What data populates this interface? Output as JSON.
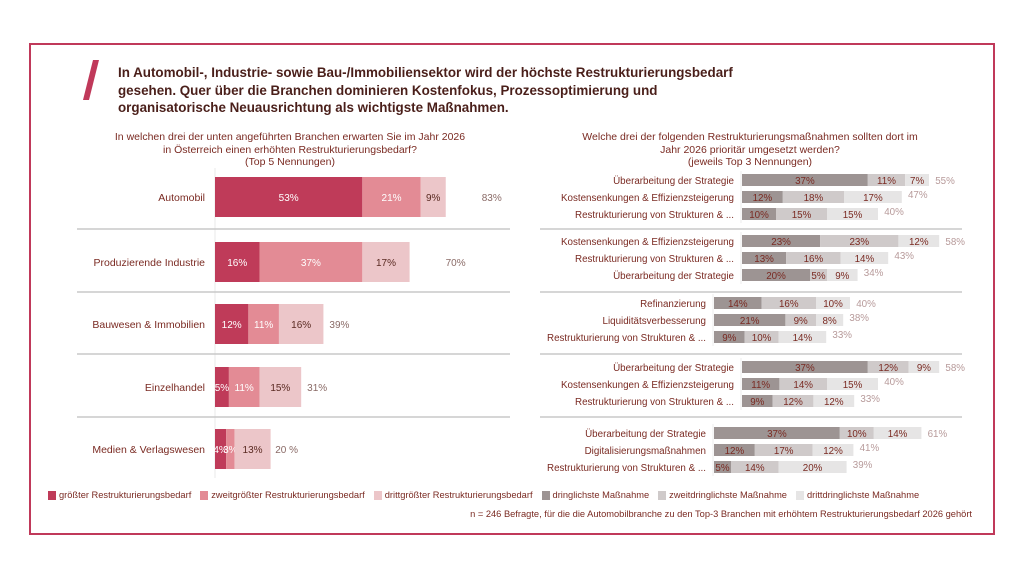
{
  "headline": "In Automobil-, Industrie- sowie Bau-/Immobiliensektor wird der höchste Restrukturierungsbedarf gesehen. Quer über die Branchen dominieren Kostenfokus, Prozessoptimierung und organisatorische Neuausrichtung als wichtigste Maßnahmen.",
  "colors": {
    "frame": "#c0395a",
    "red1": "#bf3b59",
    "red2": "#e38b95",
    "red3": "#ecc6c9",
    "grey1": "#9d9493",
    "grey2": "#cfcaca",
    "grey3": "#e6e5e5",
    "text": "#7a2a22",
    "total_grey": "#b79a9a"
  },
  "left_question": [
    "In welchen drei der unten angeführten Branchen erwarten Sie im Jahr 2026",
    "in Österreich einen erhöhten Restrukturierungsbedarf?",
    "(Top 5 Nennungen)"
  ],
  "right_question": [
    "Welche drei der folgenden Restrukturierungsmaßnahmen sollten dort im",
    "Jahr 2026 prioritär umgesetzt werden?",
    "(jeweils Top 3 Nennungen)"
  ],
  "legend": [
    {
      "label": "größter Restrukturierungsbedarf",
      "color": "#bf3b59"
    },
    {
      "label": "zweitgrößter Restrukturierungsbedarf",
      "color": "#e38b95"
    },
    {
      "label": "drittgrößter Restrukturierungsbedarf",
      "color": "#ecc6c9"
    },
    {
      "label": "dringlichste Maßnahme",
      "color": "#9d9493"
    },
    {
      "label": "zweitdringlichste Maßnahme",
      "color": "#cfcaca"
    },
    {
      "label": "drittdringlichste Maßnahme",
      "color": "#e6e5e5"
    }
  ],
  "note": "n = 246 Befragte, für die die Automobilbranche zu den Top-3 Branchen mit erhöhtem Restrukturierungsbedarf 2026 gehört",
  "chart_data": [
    {
      "type": "bar",
      "orientation": "horizontal-stacked",
      "title": "In welchen drei der unten angeführten Branchen erwarten Sie im Jahr 2026 in Österreich einen erhöhten Restrukturierungsbedarf? (Top 5 Nennungen)",
      "categories": [
        "Automobil",
        "Produzierende Industrie",
        "Bauwesen & Immobilien",
        "Einzelhandel",
        "Medien & Verlagswesen"
      ],
      "series": [
        {
          "name": "größter Restrukturierungsbedarf",
          "values": [
            53,
            16,
            12,
            5,
            4
          ]
        },
        {
          "name": "zweitgrößter Restrukturierungsbedarf",
          "values": [
            21,
            37,
            11,
            11,
            3
          ]
        },
        {
          "name": "drittgrößter Restrukturierungsbedarf",
          "values": [
            9,
            17,
            16,
            15,
            13
          ]
        }
      ],
      "totals": [
        83,
        70,
        39,
        31,
        20
      ],
      "total_labels": [
        "83%",
        "70%",
        "39%",
        "31%",
        "20 %"
      ],
      "unit": "%"
    },
    {
      "type": "bar",
      "orientation": "horizontal-stacked",
      "title": "Welche drei der folgenden Restrukturierungsmaßnahmen sollten dort im Jahr 2026 prioritär umgesetzt werden? (jeweils Top 3 Nennungen)",
      "groups": [
        {
          "industry": "Automobil",
          "items": [
            {
              "label": "Überarbeitung der Strategie",
              "values": [
                37,
                11,
                7
              ],
              "total": 55
            },
            {
              "label": "Kostensenkungen & Effizienzsteigerung",
              "values": [
                12,
                18,
                17
              ],
              "total": 47
            },
            {
              "label": "Restrukturierung von Strukturen & ...",
              "values": [
                10,
                15,
                15
              ],
              "total": 40
            }
          ]
        },
        {
          "industry": "Produzierende Industrie",
          "items": [
            {
              "label": "Kostensenkungen & Effizienzsteigerung",
              "values": [
                23,
                23,
                12
              ],
              "total": 58
            },
            {
              "label": "Restrukturierung von Strukturen & ...",
              "values": [
                13,
                16,
                14
              ],
              "total": 43
            },
            {
              "label": "Überarbeitung der Strategie",
              "values": [
                20,
                5,
                9
              ],
              "total": 34
            }
          ]
        },
        {
          "industry": "Bauwesen & Immobilien",
          "items": [
            {
              "label": "Refinanzierung",
              "values": [
                14,
                16,
                10
              ],
              "total": 40
            },
            {
              "label": "Liquiditätsverbesserung",
              "values": [
                21,
                9,
                8
              ],
              "total": 38
            },
            {
              "label": "Restrukturierung von Strukturen & ...",
              "values": [
                9,
                10,
                14
              ],
              "total": 33
            }
          ]
        },
        {
          "industry": "Einzelhandel",
          "items": [
            {
              "label": "Überarbeitung der Strategie",
              "values": [
                37,
                12,
                9
              ],
              "total": 58
            },
            {
              "label": "Kostensenkungen & Effizienzsteigerung",
              "values": [
                11,
                14,
                15
              ],
              "total": 40
            },
            {
              "label": "Restrukturierung von Strukturen & ...",
              "values": [
                9,
                12,
                12
              ],
              "total": 33
            }
          ]
        },
        {
          "industry": "Medien & Verlagswesen",
          "items": [
            {
              "label": "Überarbeitung der Strategie",
              "values": [
                37,
                10,
                14
              ],
              "total": 61
            },
            {
              "label": "Digitalisierungsmaßnahmen",
              "values": [
                12,
                17,
                12
              ],
              "total": 41
            },
            {
              "label": "Restrukturierung von Strukturen & ...",
              "values": [
                5,
                14,
                20
              ],
              "total": 39
            }
          ]
        }
      ],
      "series_names": [
        "dringlichste Maßnahme",
        "zweitdringlichste Maßnahme",
        "drittdringlichste Maßnahme"
      ],
      "unit": "%"
    }
  ]
}
